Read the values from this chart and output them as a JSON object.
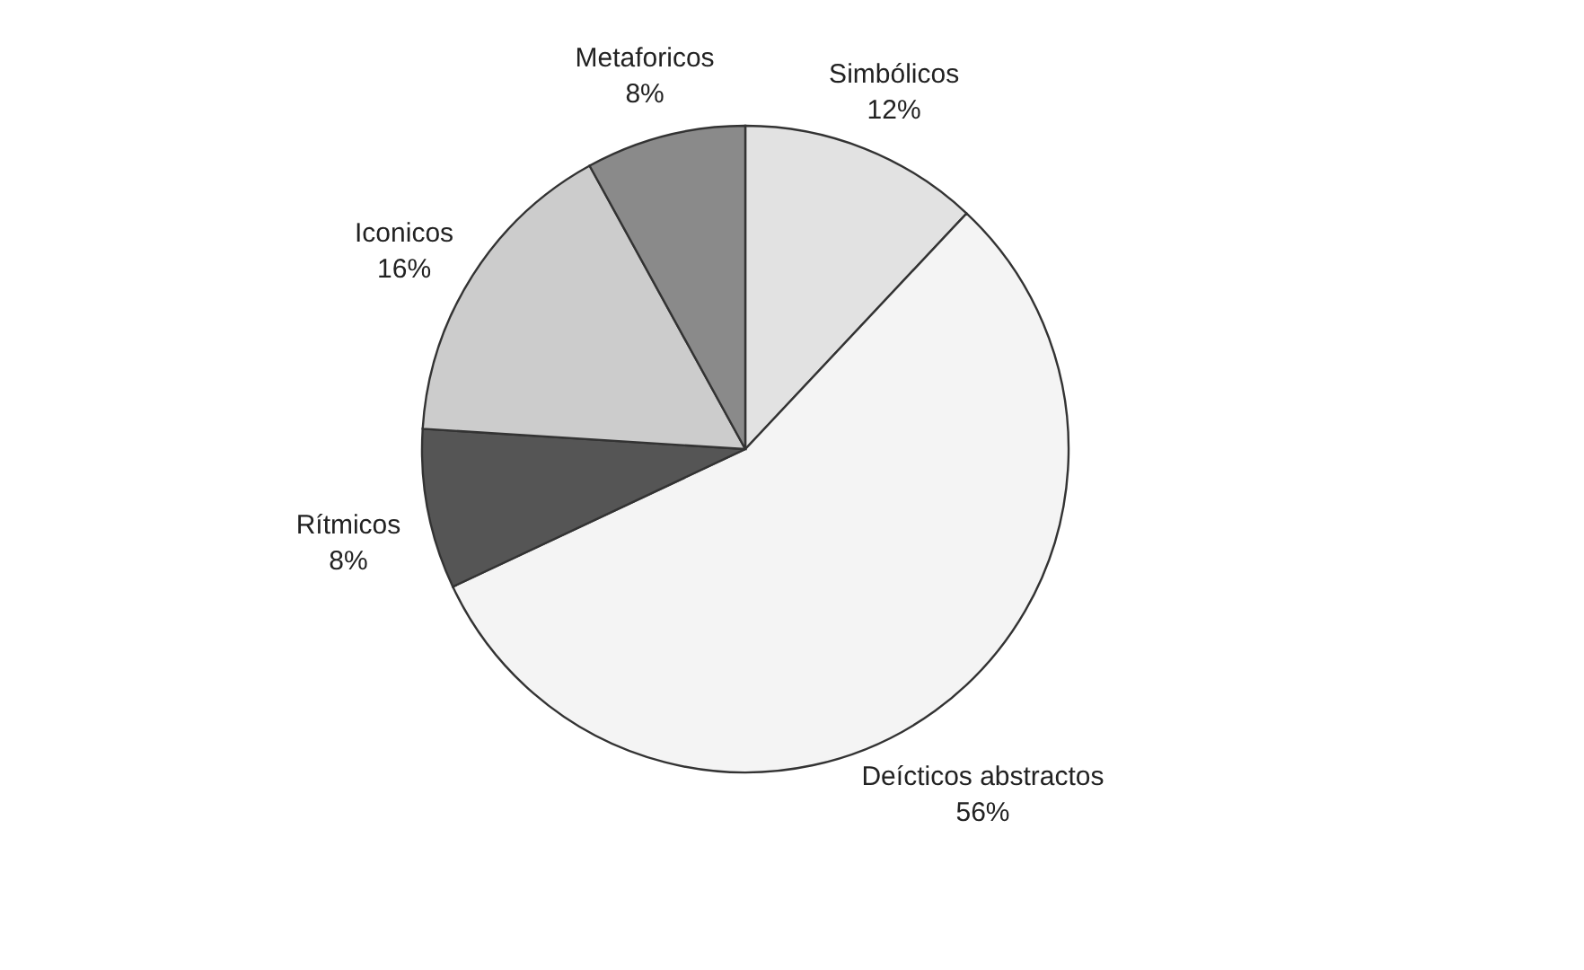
{
  "chart_data": {
    "type": "pie",
    "categories": [
      "Simbólicos",
      "Deícticos abstractos",
      "Rítmicos",
      "Iconicos",
      "Metaforicos"
    ],
    "values": [
      12,
      56,
      8,
      16,
      8
    ],
    "value_labels": [
      "12%",
      "56%",
      "8%",
      "16%",
      "8%"
    ],
    "colors": [
      "#e2e2e2",
      "#f4f4f4",
      "#555555",
      "#cccccc",
      "#8a8a8a"
    ],
    "legend": false
  }
}
